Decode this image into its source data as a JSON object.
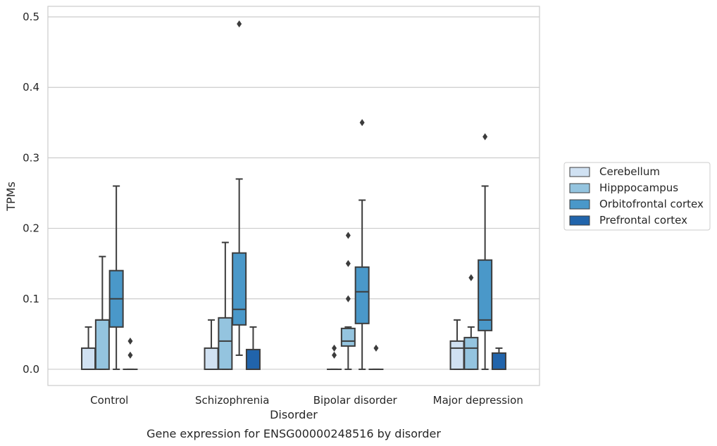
{
  "caption": "Gene expression for ENSG00000248516 by disorder",
  "chart_data": {
    "type": "box",
    "title": "",
    "xlabel": "Disorder",
    "ylabel": "TPMs",
    "ylim": [
      -0.023,
      0.515
    ],
    "yticks": [
      "0.0",
      "0.1",
      "0.2",
      "0.3",
      "0.4",
      "0.5"
    ],
    "ytick_values": [
      0.0,
      0.1,
      0.2,
      0.3,
      0.4,
      0.5
    ],
    "grid": true,
    "legend_position": "right",
    "categories": [
      "Control",
      "Schizophrenia",
      "Bipolar disorder",
      "Major depression"
    ],
    "series": [
      {
        "name": "Cerebellum",
        "color": "#d0e1f2",
        "boxes": [
          {
            "min": 0.0,
            "q1": 0.0,
            "median": 0.0,
            "q3": 0.03,
            "max": 0.06,
            "outliers": []
          },
          {
            "min": 0.0,
            "q1": 0.0,
            "median": 0.0,
            "q3": 0.03,
            "max": 0.07,
            "outliers": []
          },
          {
            "min": 0.0,
            "q1": 0.0,
            "median": 0.0,
            "q3": 0.0,
            "max": 0.0,
            "outliers": [
              0.03,
              0.02
            ]
          },
          {
            "min": 0.0,
            "q1": 0.0,
            "median": 0.03,
            "q3": 0.04,
            "max": 0.07,
            "outliers": []
          }
        ]
      },
      {
        "name": "Hipppocampus",
        "color": "#94c4df",
        "boxes": [
          {
            "min": 0.0,
            "q1": 0.0,
            "median": 0.07,
            "q3": 0.07,
            "max": 0.16,
            "outliers": []
          },
          {
            "min": 0.0,
            "q1": 0.0,
            "median": 0.04,
            "q3": 0.073,
            "max": 0.18,
            "outliers": []
          },
          {
            "min": 0.0,
            "q1": 0.033,
            "median": 0.04,
            "q3": 0.058,
            "max": 0.06,
            "outliers": [
              0.19,
              0.15,
              0.1
            ]
          },
          {
            "min": 0.0,
            "q1": 0.0,
            "median": 0.03,
            "q3": 0.045,
            "max": 0.06,
            "outliers": [
              0.13
            ]
          }
        ]
      },
      {
        "name": "Orbitofrontal cortex",
        "color": "#4a98c9",
        "boxes": [
          {
            "min": 0.0,
            "q1": 0.06,
            "median": 0.1,
            "q3": 0.14,
            "max": 0.26,
            "outliers": []
          },
          {
            "min": 0.02,
            "q1": 0.063,
            "median": 0.085,
            "q3": 0.165,
            "max": 0.27,
            "outliers": [
              0.49
            ]
          },
          {
            "min": 0.0,
            "q1": 0.065,
            "median": 0.11,
            "q3": 0.145,
            "max": 0.24,
            "outliers": [
              0.35
            ]
          },
          {
            "min": 0.0,
            "q1": 0.055,
            "median": 0.07,
            "q3": 0.155,
            "max": 0.26,
            "outliers": [
              0.33
            ]
          }
        ]
      },
      {
        "name": "Prefrontal cortex",
        "color": "#2164ab",
        "boxes": [
          {
            "min": 0.0,
            "q1": 0.0,
            "median": 0.0,
            "q3": 0.0,
            "max": 0.0,
            "outliers": [
              0.04,
              0.02
            ]
          },
          {
            "min": 0.0,
            "q1": 0.0,
            "median": 0.0,
            "q3": 0.028,
            "max": 0.06,
            "outliers": []
          },
          {
            "min": 0.0,
            "q1": 0.0,
            "median": 0.0,
            "q3": 0.0,
            "max": 0.0,
            "outliers": [
              0.03
            ]
          },
          {
            "min": 0.0,
            "q1": 0.0,
            "median": 0.0,
            "q3": 0.023,
            "max": 0.03,
            "outliers": []
          }
        ]
      }
    ]
  }
}
